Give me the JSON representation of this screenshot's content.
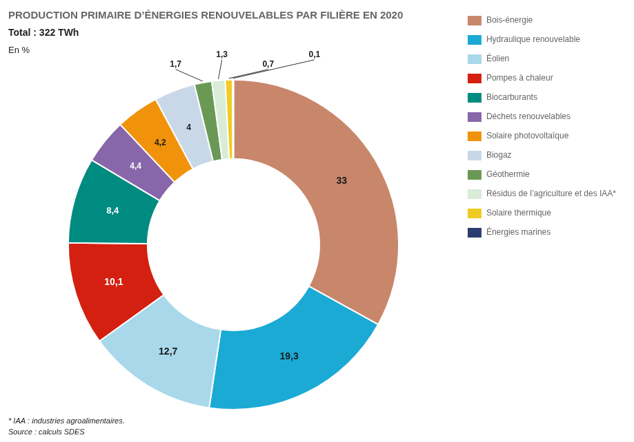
{
  "chart_data": {
    "type": "doughnut",
    "title": "PRODUCTION PRIMAIRE D’ÉNERGIES RENOUVELABLES PAR FILIÈRE EN 2020",
    "subtitle": "Total : 322 TWh",
    "annotations": [
      "En %",
      "* IAA : industries agroalimentaires.",
      "Source : calculs SDES"
    ],
    "categories": [
      "Bois-énergie",
      "Hydraulique renouvelable",
      "Éolien",
      "Pompes à chaleur",
      "Biocarburants",
      "Déchets renouvelables",
      "Solaire photovoltaïque",
      "Biogaz",
      "Géothermie",
      "Résidus de l’agriculture et des IAA*",
      "Solaire thermique",
      "Énergies marines"
    ],
    "values": [
      33,
      19.3,
      12.7,
      10.1,
      8.4,
      4.4,
      4.2,
      4.0,
      1.7,
      1.3,
      0.7,
      0.1
    ],
    "value_labels": [
      "33",
      "19,3",
      "12,7",
      "10,1",
      "8,4",
      "4,4",
      "4,2",
      "4",
      "1,7",
      "1,3",
      "0,7",
      "0,1"
    ],
    "colors": [
      "#c8876a",
      "#1aaad4",
      "#a8d8ea",
      "#d42010",
      "#008b80",
      "#8866aa",
      "#f0930a",
      "#c8d8e8",
      "#6a9955",
      "#d8ecd8",
      "#f0cc22",
      "#2a3d6e"
    ],
    "data_labels": true,
    "legend": "right"
  }
}
